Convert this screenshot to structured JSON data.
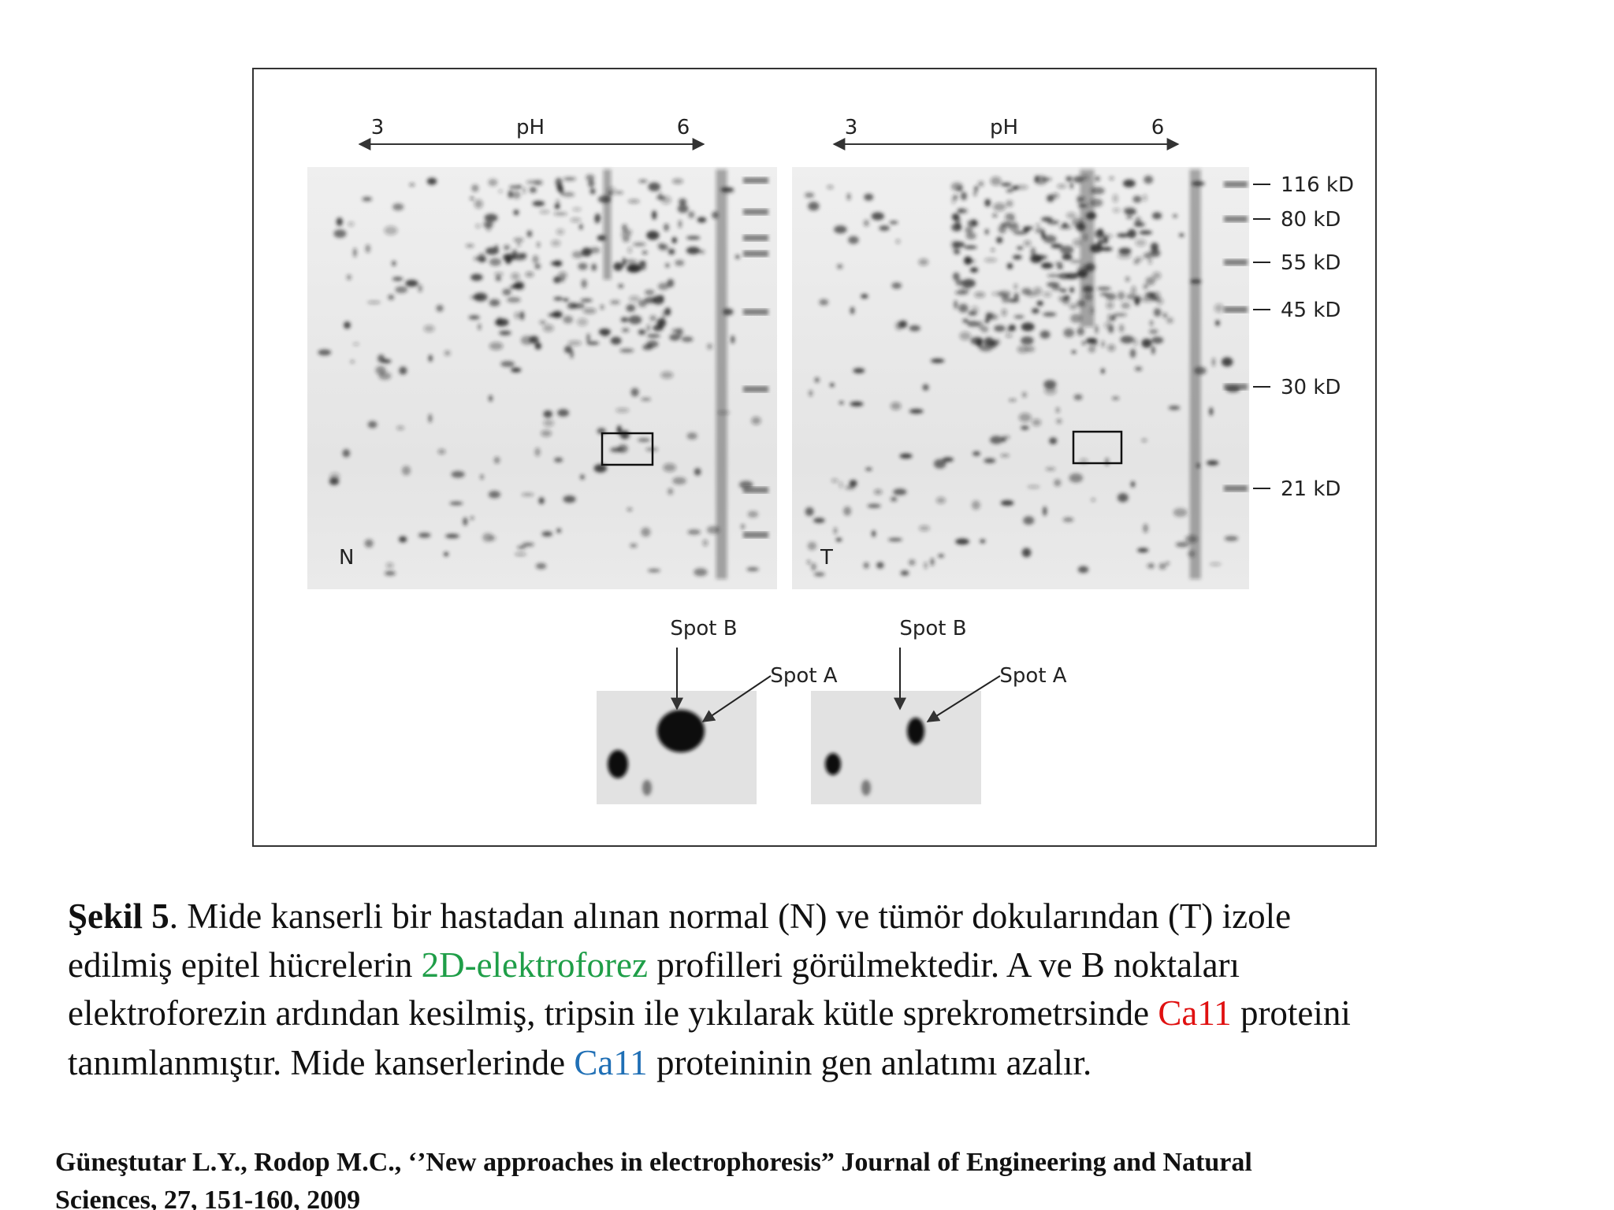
{
  "figure": {
    "gels": [
      {
        "ph_low": "3",
        "ph_label": "pH",
        "ph_high": "6",
        "label": "N",
        "spot_b": "Spot B",
        "spot_a": "Spot A"
      },
      {
        "ph_low": "3",
        "ph_label": "pH",
        "ph_high": "6",
        "label": "T",
        "spot_b": "Spot B",
        "spot_a": "Spot A"
      }
    ],
    "markers": [
      "116 kD",
      "80 kD",
      "55 kD",
      "45 kD",
      "30 kD",
      "21 kD"
    ]
  },
  "caption": {
    "lines": [
      [
        "Şekil 5",
        ". Mide kanserli bir hastadan alınan normal (N) ve tümör dokularından (T) izole"
      ],
      [
        "edilmiş epitel hücrelerin ",
        "2D-elektroforez",
        " profilleri görülmektedir. A ve B noktaları"
      ],
      [
        "elektroforezin ardından kesilmiş, tripsin ile yıkılarak kütle sprekrometrsinde ",
        "Ca11",
        " proteini"
      ],
      [
        "tanımlanmıştır. Mide kanserlerinde ",
        "Ca11",
        " proteininin gen anlatımı azalır."
      ]
    ]
  },
  "citation": [
    "Güneştutar L.Y., Rodop M.C., ‘’New approaches in electrophoresis” Journal of Engineering and Natural",
    "Sciences, 27, 151-160, 2009"
  ]
}
